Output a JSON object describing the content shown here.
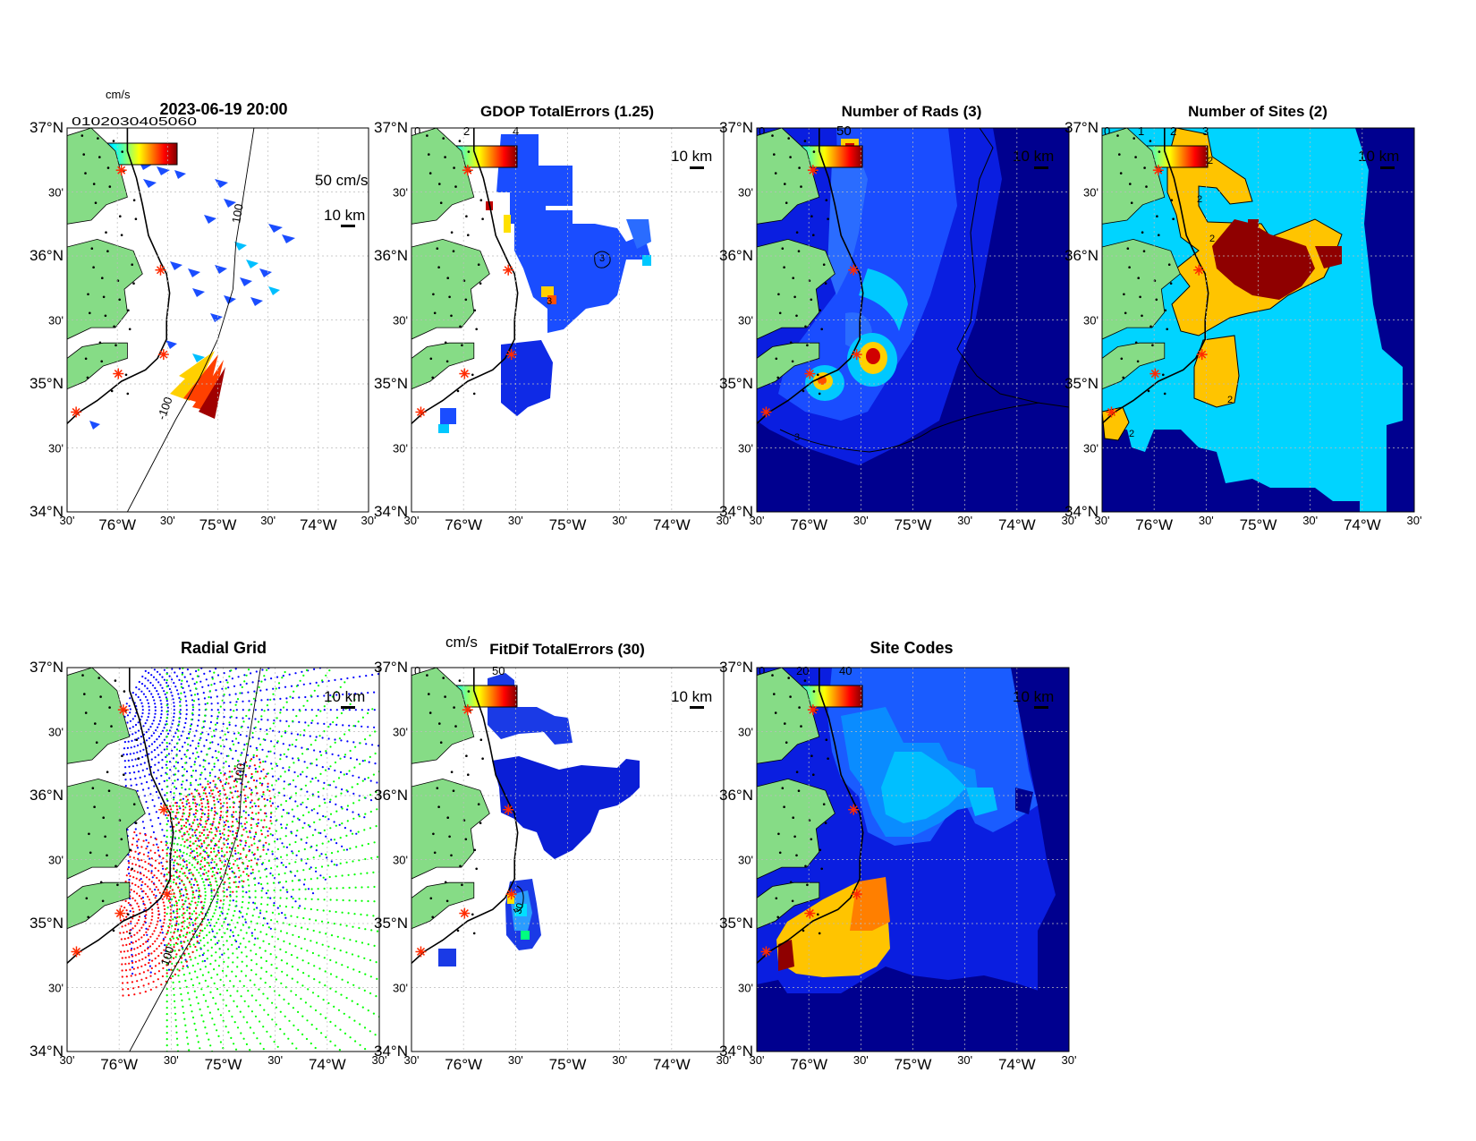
{
  "timestamp": "2023-06-19 20:00",
  "colors": {
    "land": "#86dc86",
    "ocean": "#ffffff",
    "deep_blue": "#00008f",
    "blue": "#1a3dff",
    "mid_blue": "#2a6cff",
    "cyan": "#00d4ff",
    "orange_yellow": "#ffc400",
    "orange": "#ff7f00",
    "dark_red": "#8f0000",
    "site_marker": "#ff2a00",
    "radial_site1": "#0000ff",
    "radial_site2": "#ff0000",
    "radial_site3": "#00ff00"
  },
  "axes": {
    "lat_labels": [
      "37°N",
      "30'",
      "36°N",
      "30'",
      "35°N",
      "30'",
      "34°N"
    ],
    "lon_labels": [
      "30'",
      "76°W",
      "30'",
      "75°W",
      "30'",
      "74°W",
      "30'"
    ]
  },
  "scale_bar_label": "10 km",
  "panels": [
    {
      "id": "currents",
      "title": "2023-06-19 20:00",
      "colorbar_unit": "cm/s",
      "colorbar_tick_text": "0102030405060",
      "vector_scale_label": "50 cm/s",
      "isobath_labels": [
        "100",
        "-100"
      ]
    },
    {
      "id": "gdop",
      "title": "GDOP TotalErrors (1.25)",
      "colorbar_ticks": [
        "0",
        "2",
        "4"
      ],
      "contour_labels": [
        "3",
        "3"
      ]
    },
    {
      "id": "nrads",
      "title": "Number of Rads (3)",
      "colorbar_ticks": [
        "0",
        "50"
      ],
      "contour_labels": [
        "3"
      ]
    },
    {
      "id": "nsites",
      "title": "Number of Sites (2)",
      "colorbar_ticks": [
        "0",
        "1",
        "2",
        "3"
      ],
      "contour_labels": [
        "2",
        "2",
        "2",
        "2",
        "2"
      ]
    },
    {
      "id": "radial",
      "title": "Radial Grid",
      "isobath_labels": [
        "100",
        "100"
      ]
    },
    {
      "id": "fitdif",
      "title": "FitDif TotalErrors (30)",
      "colorbar_unit": "cm/s",
      "colorbar_ticks": [
        "0",
        "50"
      ],
      "contour_labels": [
        "30"
      ]
    },
    {
      "id": "sitecodes",
      "title": "Site Codes",
      "colorbar_ticks": [
        "0",
        "20",
        "40"
      ]
    }
  ]
}
